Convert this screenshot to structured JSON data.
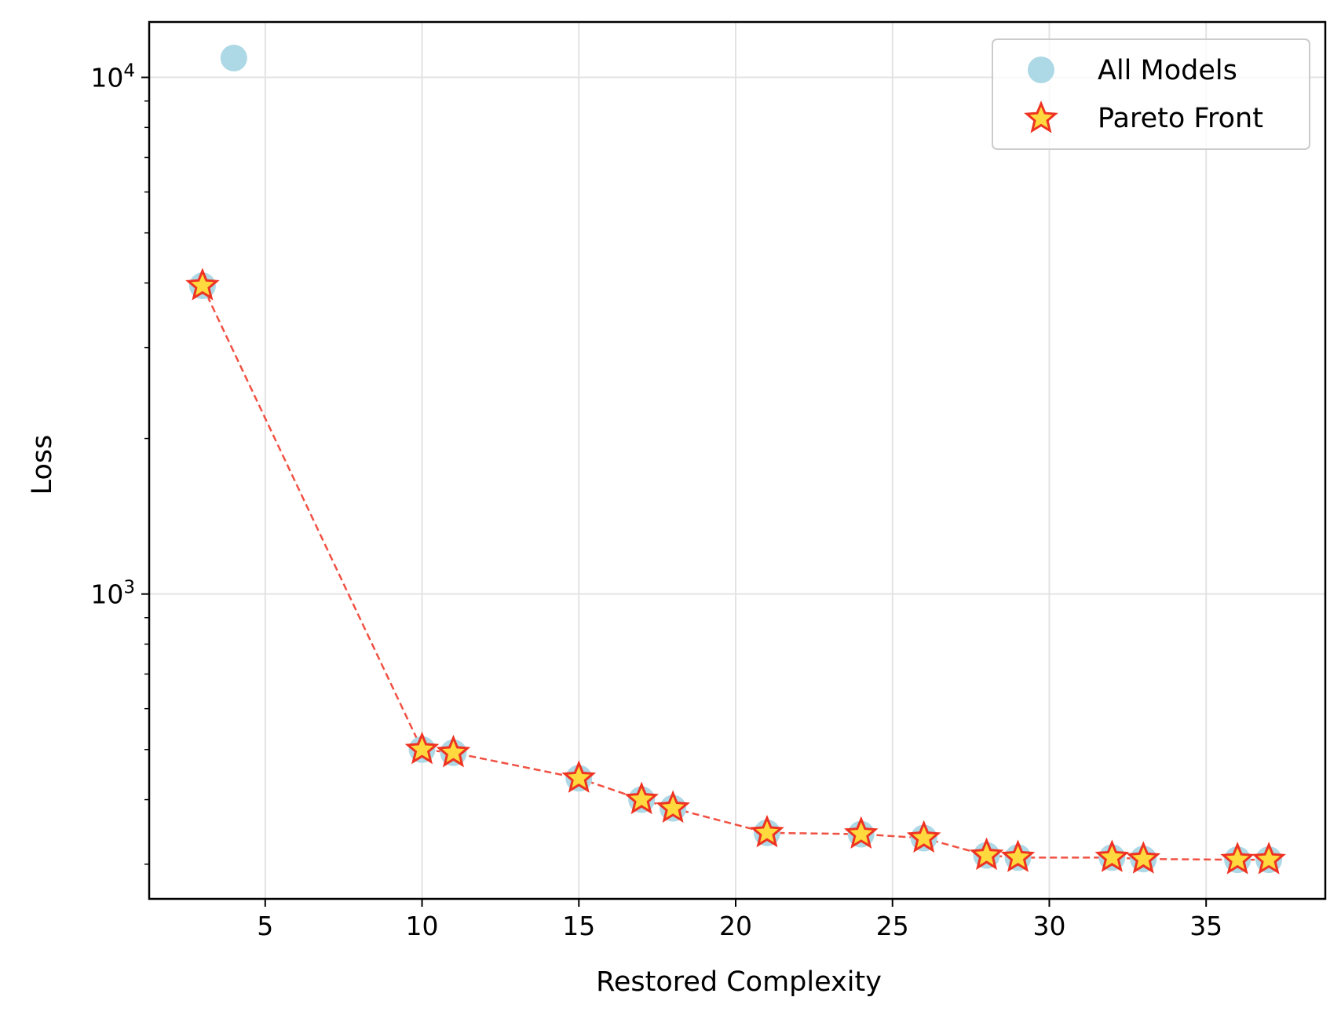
{
  "chart_data": {
    "type": "scatter",
    "xlabel": "Restored Complexity",
    "ylabel": "Loss",
    "xlim": [
      1.3,
      38.8
    ],
    "ylim": [
      257,
      12800
    ],
    "yscale": "log",
    "grid": true,
    "legend_position": "top-right",
    "x_ticks": [
      5,
      10,
      15,
      20,
      25,
      30,
      35
    ],
    "y_major_ticks": [
      {
        "value": 1000,
        "base": "10",
        "exponent": "3"
      },
      {
        "value": 10000,
        "base": "10",
        "exponent": "4"
      }
    ],
    "y_minor_ticks": [
      300,
      400,
      500,
      600,
      700,
      800,
      900,
      2000,
      3000,
      4000,
      5000,
      6000,
      7000,
      8000,
      9000
    ],
    "series": [
      {
        "name": "All Models",
        "marker": "circle",
        "color": "#add8e6",
        "x": [
          3,
          4,
          10,
          11,
          15,
          17,
          18,
          21,
          24,
          26,
          28,
          29,
          32,
          33,
          36,
          37
        ],
        "y": [
          3950,
          10900,
          500,
          493,
          440,
          400,
          385,
          345,
          343,
          337,
          312,
          309,
          309,
          307,
          306,
          306
        ]
      },
      {
        "name": "Pareto Front",
        "marker": "star",
        "color": "#ffd93d",
        "edge_color": "#ee3322",
        "line_style": "dashed",
        "x": [
          3,
          10,
          11,
          15,
          17,
          18,
          21,
          24,
          26,
          28,
          29,
          32,
          33,
          36,
          37
        ],
        "y": [
          3950,
          500,
          493,
          440,
          400,
          385,
          345,
          343,
          337,
          312,
          309,
          309,
          307,
          306,
          306
        ]
      }
    ]
  }
}
